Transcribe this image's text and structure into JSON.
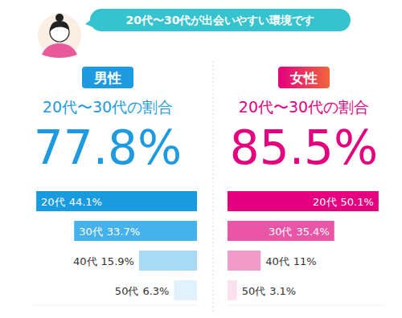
{
  "header": {
    "text": "20代〜30代が出会いやすい環境です"
  },
  "chart_data": [
    {
      "type": "bar",
      "orientation": "horizontal",
      "title": "男性",
      "subtitle": "20代〜30代の割合",
      "annotations": [
        {
          "value": 77.8,
          "label": "77.8%"
        }
      ],
      "categories": [
        "20代",
        "30代",
        "40代",
        "50代"
      ],
      "values": [
        44.1,
        33.7,
        15.9,
        6.3
      ],
      "value_labels": [
        "44.1%",
        "33.7%",
        "15.9%",
        "6.3%"
      ],
      "color": "#1e9be0",
      "colors": [
        "#1a9be0",
        "#45b2ec",
        "#a8d9f5",
        "#e2f2fc"
      ],
      "xlim": [
        0,
        45
      ],
      "data_labels": true,
      "tick_labels": false
    },
    {
      "type": "bar",
      "orientation": "horizontal",
      "title": "女性",
      "subtitle": "20代〜30代の割合",
      "annotations": [
        {
          "value": 85.5,
          "label": "85.5%"
        }
      ],
      "categories": [
        "20代",
        "30代",
        "40代",
        "50代"
      ],
      "values": [
        50.1,
        35.4,
        11,
        3.1
      ],
      "value_labels": [
        "50.1%",
        "35.4%",
        "11%",
        "3.1%"
      ],
      "color": "#e4007f",
      "colors": [
        "#e4007f",
        "#ea56a6",
        "#f29cca",
        "#fbe1ee"
      ],
      "xlim": [
        0,
        52
      ],
      "data_labels": true,
      "tick_labels": false
    }
  ]
}
